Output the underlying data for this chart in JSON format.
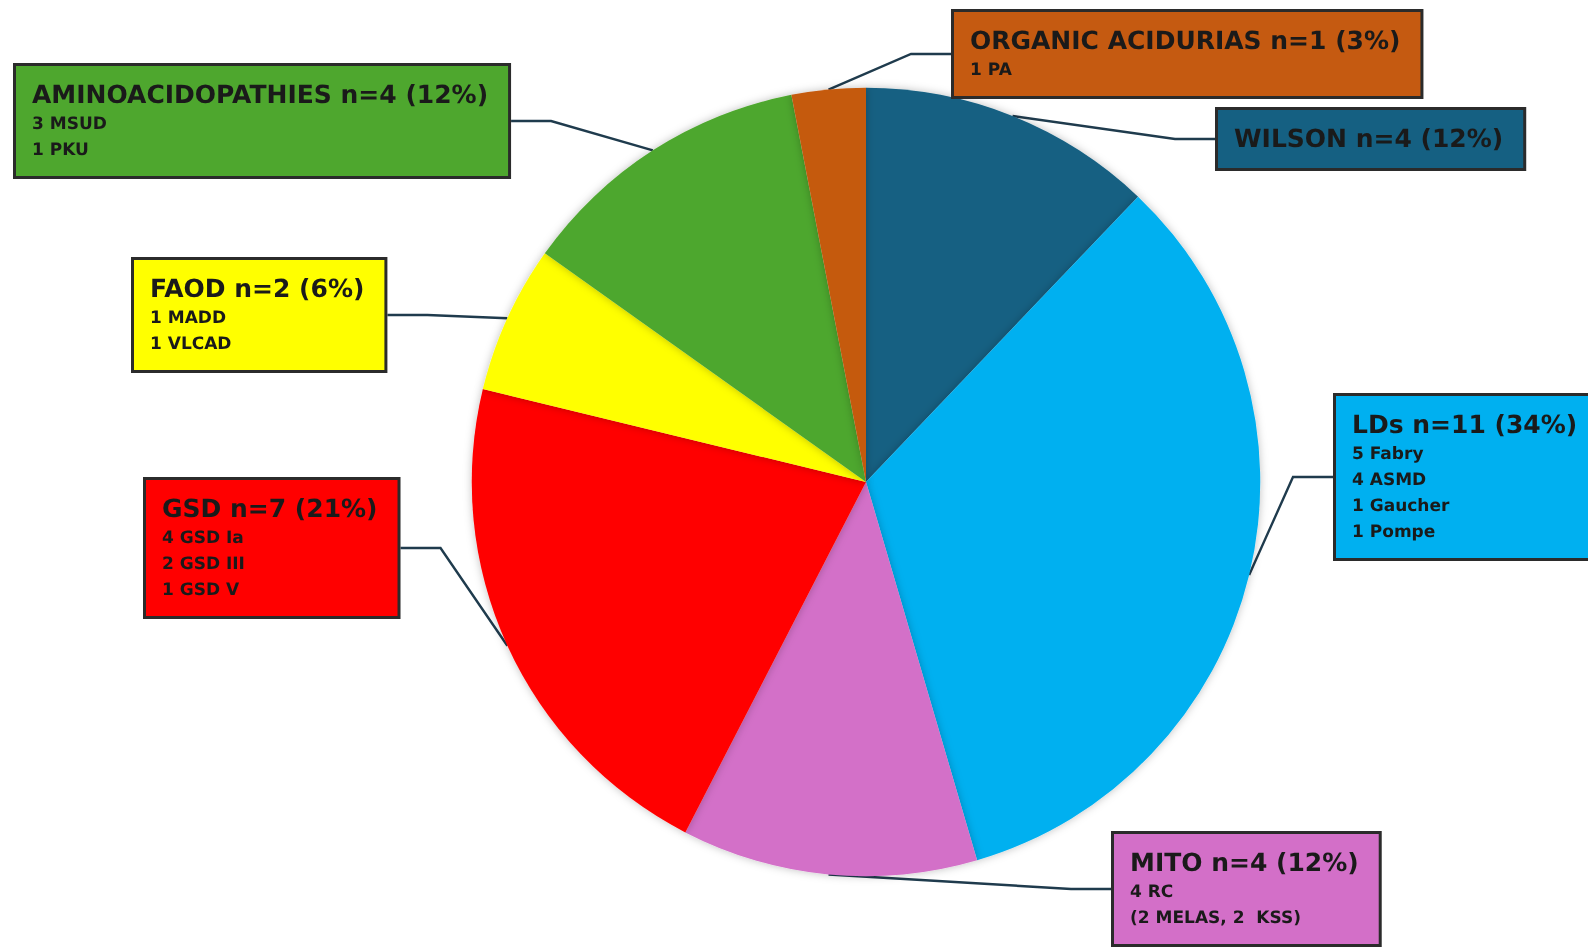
{
  "chart_data": {
    "type": "pie",
    "categories": [
      "WILSON n=4 (12%)",
      "LDs n=11 (34%)\n5 Fabry\n4 ASMD\n1 Gaucher\n1 Pompe",
      "MITO n=4 (12%)\n4 RC\n(2 MELAS, 2  KSS)",
      "GSD n=7 (21%)\n4 GSD Ia\n2 GSD III\n1 GSD V",
      "FAOD n=2 (6%)\n1 MADD\n1 VLCAD",
      "AMINOACIDOPATHIES n=4 (12%)\n3 MSUD\n1 PKU",
      "ORGANIC ACIDURIAS n=1 (3%)\n1 PA"
    ],
    "values": [
      4,
      11,
      4,
      7,
      2,
      4,
      1
    ],
    "colors": [
      "#156082",
      "#00b0f0",
      "#d36fc8",
      "#ff0000",
      "#ffff00",
      "#4ea72e",
      "#c55a11"
    ],
    "legend": false
  }
}
